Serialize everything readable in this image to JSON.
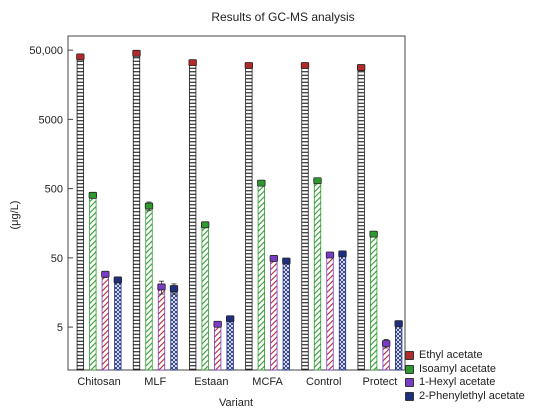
{
  "chart_data": {
    "type": "bar",
    "title": "Results of GC-MS analysis",
    "xlabel": "Variant",
    "ylabel": "(μg/L)",
    "yscale": "log",
    "ylim": [
      1.2,
      80000
    ],
    "yticks": [
      5,
      50,
      500,
      5000,
      50000
    ],
    "ytick_labels": [
      "5",
      "50",
      "500",
      "5000",
      "50,000"
    ],
    "grid": false,
    "legend_position": "bottom-right outside",
    "categories": [
      "Chitosan",
      "MLF",
      "Estaan",
      "MCFA",
      "Control",
      "Protect"
    ],
    "series": [
      {
        "name": "Ethyl acetate",
        "color": "#b22b2b",
        "hatch": "horizontal-lines",
        "values": [
          40000,
          45000,
          33000,
          30000,
          30000,
          28000
        ],
        "errors": [
          2500,
          3000,
          2500,
          2500,
          2500,
          2500
        ]
      },
      {
        "name": "Isoamyl acetate",
        "color": "#2e9a2e",
        "hatch": "diagonal-lines",
        "values": [
          400,
          280,
          150,
          600,
          650,
          110
        ],
        "errors": [
          30,
          40,
          10,
          50,
          60,
          10
        ]
      },
      {
        "name": "1-Hexyl acetate",
        "color": "#7a3cc8",
        "hatch": "diagonal-lines",
        "values": [
          29,
          19,
          5.5,
          49,
          55,
          2.9
        ],
        "errors": [
          3,
          4,
          0.5,
          4,
          4,
          0.4
        ]
      },
      {
        "name": "2-Phenylethyl acetate",
        "color": "#1f2f80",
        "hatch": "crosshatch",
        "values": [
          24,
          18,
          6.6,
          45,
          57,
          5.6
        ],
        "errors": [
          2,
          3,
          0.6,
          3,
          4,
          0.5
        ]
      }
    ]
  }
}
